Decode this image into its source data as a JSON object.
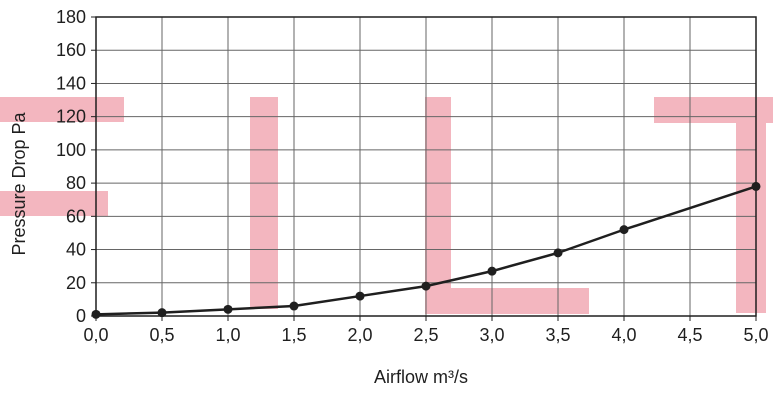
{
  "chart_data": {
    "type": "line",
    "title": "",
    "xlabel": "Airflow m³/s",
    "ylabel": "Pressure Drop Pa",
    "xlim": [
      0,
      5
    ],
    "ylim": [
      0,
      180
    ],
    "grid": true,
    "x_ticks": [
      {
        "value": 0,
        "label": "0,0"
      },
      {
        "value": 0.5,
        "label": "0,5"
      },
      {
        "value": 1,
        "label": "1,0"
      },
      {
        "value": 1.5,
        "label": "1,5"
      },
      {
        "value": 2,
        "label": "2,0"
      },
      {
        "value": 2.5,
        "label": "2,5"
      },
      {
        "value": 3,
        "label": "3,0"
      },
      {
        "value": 3.5,
        "label": "3,5"
      },
      {
        "value": 4,
        "label": "4,0"
      },
      {
        "value": 4.5,
        "label": "4,5"
      },
      {
        "value": 5,
        "label": "5,0"
      }
    ],
    "y_ticks": [
      {
        "value": 0,
        "label": "0"
      },
      {
        "value": 20,
        "label": "20"
      },
      {
        "value": 40,
        "label": "40"
      },
      {
        "value": 60,
        "label": "60"
      },
      {
        "value": 80,
        "label": "80"
      },
      {
        "value": 100,
        "label": "100"
      },
      {
        "value": 120,
        "label": "120"
      },
      {
        "value": 140,
        "label": "140"
      },
      {
        "value": 160,
        "label": "160"
      },
      {
        "value": 180,
        "label": "180"
      }
    ],
    "series": [
      {
        "name": "",
        "color": "#1f1f1f",
        "points": [
          {
            "x": 0,
            "y": 1
          },
          {
            "x": 0.5,
            "y": 2
          },
          {
            "x": 1,
            "y": 4
          },
          {
            "x": 1.5,
            "y": 6
          },
          {
            "x": 2,
            "y": 12
          },
          {
            "x": 2.5,
            "y": 18
          },
          {
            "x": 3,
            "y": 27
          },
          {
            "x": 3.5,
            "y": 38
          },
          {
            "x": 4,
            "y": 52
          },
          {
            "x": 5,
            "y": 78
          }
        ]
      }
    ],
    "colors": {
      "watermark": "#f3b6bf",
      "grid": "#666666",
      "axis": "#1f1f1f",
      "text": "#1f1f1f",
      "line": "#1f1f1f",
      "marker": "#1f1f1f"
    }
  }
}
